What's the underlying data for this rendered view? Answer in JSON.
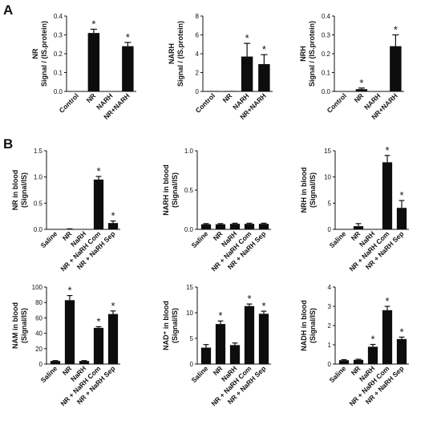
{
  "panels": [
    {
      "label": "A"
    },
    {
      "label": "B"
    }
  ],
  "chart_data": [
    {
      "type": "bar",
      "panel": "A",
      "ylabel_lines": [
        "NR",
        "Signal / (IS.protein)"
      ],
      "categories": [
        "Control",
        "NR",
        "NARH",
        "NR+NARH"
      ],
      "values": [
        0,
        0.31,
        0,
        0.24
      ],
      "errors": [
        0,
        0.02,
        0,
        0.02
      ],
      "significant": [
        false,
        true,
        false,
        true
      ],
      "ylim": [
        0,
        0.4
      ],
      "yticks": [
        0.0,
        0.1,
        0.2,
        0.3,
        0.4
      ],
      "ytick_labels": [
        "0.0",
        "0.1",
        "0.2",
        "0.3",
        "0.4"
      ],
      "significance_marker": "*"
    },
    {
      "type": "bar",
      "panel": "A",
      "ylabel_lines": [
        "NARH",
        "Signal / (IS.protein)"
      ],
      "categories": [
        "Control",
        "NR",
        "NARH",
        "NR+NARH"
      ],
      "values": [
        0.05,
        0.05,
        3.7,
        2.9
      ],
      "errors": [
        0,
        0,
        1.4,
        1.0
      ],
      "significant": [
        false,
        false,
        true,
        true
      ],
      "ylim": [
        0,
        8
      ],
      "yticks": [
        0,
        2,
        4,
        6,
        8
      ],
      "ytick_labels": [
        "0",
        "2",
        "4",
        "6",
        "8"
      ],
      "significance_marker": "*"
    },
    {
      "type": "bar",
      "panel": "A",
      "ylabel_lines": [
        "NRH",
        "Signal / (IS.protein)"
      ],
      "categories": [
        "Control",
        "NR",
        "NARH",
        "NR+NARH"
      ],
      "values": [
        0,
        0.012,
        0,
        0.24
      ],
      "errors": [
        0,
        0.006,
        0,
        0.06
      ],
      "significant": [
        false,
        true,
        false,
        true
      ],
      "ylim": [
        0,
        0.4
      ],
      "yticks": [
        0.0,
        0.1,
        0.2,
        0.3,
        0.4
      ],
      "ytick_labels": [
        "0.0",
        "0.1",
        "0.2",
        "0.3",
        "0.4"
      ],
      "significance_marker": "*"
    },
    {
      "type": "bar",
      "panel": "B",
      "ylabel_lines": [
        "NR in blood",
        "(Signal/IS)"
      ],
      "categories": [
        "Saline",
        "NR",
        "NaRH",
        "NR + NaRH Com",
        "NR + NaRH Sep"
      ],
      "values": [
        0,
        0.005,
        0,
        0.95,
        0.12
      ],
      "errors": [
        0,
        0.005,
        0,
        0.06,
        0.04
      ],
      "significant": [
        false,
        false,
        false,
        true,
        true
      ],
      "ylim": [
        0,
        1.5
      ],
      "yticks": [
        0.0,
        0.5,
        1.0,
        1.5
      ],
      "ytick_labels": [
        "0.0",
        "0.5",
        "1.0",
        "1.5"
      ],
      "significance_marker": "*"
    },
    {
      "type": "bar",
      "panel": "B",
      "ylabel_lines": [
        "NARH in blood",
        "(Signal/IS)"
      ],
      "categories": [
        "Saline",
        "NR",
        "NaRH",
        "NR + NaRH Com",
        "NR + NaRH Sep"
      ],
      "values": [
        0.065,
        0.065,
        0.07,
        0.07,
        0.07
      ],
      "errors": [
        0.008,
        0.008,
        0.008,
        0.008,
        0.008
      ],
      "significant": [
        false,
        false,
        false,
        false,
        false
      ],
      "ylim": [
        0,
        1.0
      ],
      "yticks": [
        0.0,
        0.5,
        1.0
      ],
      "ytick_labels": [
        "0.0",
        "0.5",
        "1.0"
      ],
      "significance_marker": "*"
    },
    {
      "type": "bar",
      "panel": "B",
      "ylabel_lines": [
        "NRH in blood",
        "(Signal/IS)"
      ],
      "categories": [
        "Saline",
        "NR",
        "NaRH",
        "NR + NaRH Com",
        "NR + NaRH Sep"
      ],
      "values": [
        0,
        0.6,
        0,
        12.8,
        4.1
      ],
      "errors": [
        0,
        0.5,
        0,
        1.3,
        1.4
      ],
      "significant": [
        false,
        false,
        false,
        true,
        true
      ],
      "ylim": [
        0,
        15
      ],
      "yticks": [
        0,
        5,
        10,
        15
      ],
      "ytick_labels": [
        "0",
        "5",
        "10",
        "15"
      ],
      "significance_marker": "*"
    },
    {
      "type": "bar",
      "panel": "B",
      "ylabel_lines": [
        "NAM in blood",
        "(Signal/IS)"
      ],
      "categories": [
        "Saline",
        "NR",
        "NaRH",
        "NR + NaRH Com",
        "NR + NaRH Sep"
      ],
      "values": [
        4,
        83,
        4,
        47,
        65
      ],
      "errors": [
        0.5,
        6,
        0.5,
        1.5,
        4
      ],
      "significant": [
        false,
        true,
        false,
        true,
        true
      ],
      "ylim": [
        0,
        100
      ],
      "yticks": [
        0,
        20,
        40,
        60,
        80,
        100
      ],
      "ytick_labels": [
        "0",
        "20",
        "40",
        "60",
        "80",
        "100"
      ],
      "significance_marker": "*"
    },
    {
      "type": "bar",
      "panel": "B",
      "ylabel_lines": [
        "NAD⁺ in blood",
        "(Signal/IS)"
      ],
      "categories": [
        "Saline",
        "NR",
        "NaRH",
        "NR + NaRH Com",
        "NR + NaRH Sep"
      ],
      "values": [
        3.2,
        7.8,
        3.7,
        11.3,
        9.8
      ],
      "errors": [
        0.6,
        0.6,
        0.4,
        0.4,
        0.5
      ],
      "significant": [
        false,
        true,
        false,
        true,
        true
      ],
      "ylim": [
        0,
        15
      ],
      "yticks": [
        0,
        5,
        10,
        15
      ],
      "ytick_labels": [
        "0",
        "5",
        "10",
        "15"
      ],
      "significance_marker": "*"
    },
    {
      "type": "bar",
      "panel": "B",
      "ylabel_lines": [
        "NADH in blood",
        "(Signal/IS)"
      ],
      "categories": [
        "Saline",
        "NR",
        "NaRH",
        "NR + NaRH Com",
        "NR + NaRH Sep"
      ],
      "values": [
        0.2,
        0.22,
        0.9,
        2.8,
        1.3
      ],
      "errors": [
        0.03,
        0.03,
        0.12,
        0.2,
        0.1
      ],
      "significant": [
        false,
        false,
        true,
        true,
        true
      ],
      "ylim": [
        0,
        4
      ],
      "yticks": [
        0,
        1,
        2,
        3,
        4
      ],
      "ytick_labels": [
        "0",
        "1",
        "2",
        "3",
        "4"
      ],
      "significance_marker": "*"
    }
  ]
}
